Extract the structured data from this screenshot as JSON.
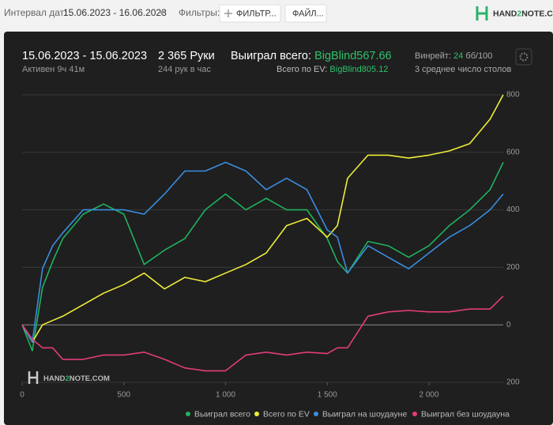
{
  "toolbar": {
    "date_label": "Интервал дат:",
    "date_range": "15.06.2023 - 16.06.2023",
    "filters_label": "Фильтры:",
    "filter_button": "ФИЛЬТР...",
    "file_button": "ФАЙЛ...",
    "logo": [
      "HAND",
      "2",
      "NOTE.COM"
    ]
  },
  "summary": {
    "period": "15.06.2023 - 15.06.2023",
    "active": "Активен 9ч 41м",
    "hands": "2 365 Руки",
    "hands_per_hour": "244 рук в час",
    "won_label": "Выиграл всего:",
    "won_value": "BigBlind567.66",
    "ev_label": "Всего по EV:",
    "ev_value": "BigBlind805.12",
    "winrate_label": "Винрейт:",
    "winrate_value": "24",
    "winrate_unit": "бб/100",
    "tables": "3 среднее число столов"
  },
  "watermark": [
    "HAND",
    "2",
    "NOTE.COM"
  ],
  "chart_data": {
    "type": "line",
    "x": [
      0,
      50,
      100,
      150,
      200,
      300,
      400,
      500,
      600,
      700,
      800,
      900,
      1000,
      1100,
      1200,
      1300,
      1400,
      1500,
      1550,
      1600,
      1700,
      1800,
      1900,
      2000,
      2100,
      2200,
      2300,
      2365
    ],
    "series": [
      {
        "name": "Выиграл всего",
        "color": "#1fb25e",
        "values": [
          0,
          -90,
          130,
          220,
          300,
          385,
          420,
          385,
          210,
          260,
          300,
          400,
          455,
          400,
          440,
          400,
          400,
          300,
          220,
          180,
          290,
          275,
          235,
          275,
          345,
          400,
          470,
          565
        ]
      },
      {
        "name": "Всего по EV",
        "color": "#eeee3a",
        "values": [
          0,
          -60,
          0,
          15,
          30,
          70,
          110,
          140,
          180,
          125,
          165,
          150,
          180,
          210,
          250,
          345,
          370,
          305,
          345,
          510,
          590,
          590,
          580,
          590,
          605,
          630,
          715,
          800
        ]
      },
      {
        "name": "Выиграл на шоудауне",
        "color": "#3a8de0",
        "values": [
          0,
          -60,
          195,
          275,
          320,
          400,
          400,
          400,
          385,
          455,
          535,
          535,
          565,
          535,
          470,
          510,
          470,
          330,
          305,
          180,
          275,
          235,
          195,
          250,
          305,
          345,
          400,
          455
        ]
      },
      {
        "name": "Выиграл без шоудауна",
        "color": "#e23c7a",
        "values": [
          0,
          -50,
          -80,
          -80,
          -120,
          -120,
          -105,
          -105,
          -95,
          -120,
          -150,
          -160,
          -160,
          -105,
          -95,
          -105,
          -95,
          -100,
          -80,
          -80,
          30,
          45,
          50,
          45,
          45,
          55,
          55,
          100
        ]
      }
    ],
    "xlim": [
      0,
      2365
    ],
    "xticks": [
      0,
      500,
      {
        "value": 1000,
        "label": "1 000"
      },
      {
        "value": 1500,
        "label": "1 500"
      },
      {
        "value": 2000,
        "label": "2 000"
      }
    ],
    "ylim": [
      -200,
      800
    ],
    "yticks": [
      {
        "value": -200,
        "label": "200"
      },
      0,
      200,
      400,
      600,
      800
    ],
    "grid": true
  }
}
